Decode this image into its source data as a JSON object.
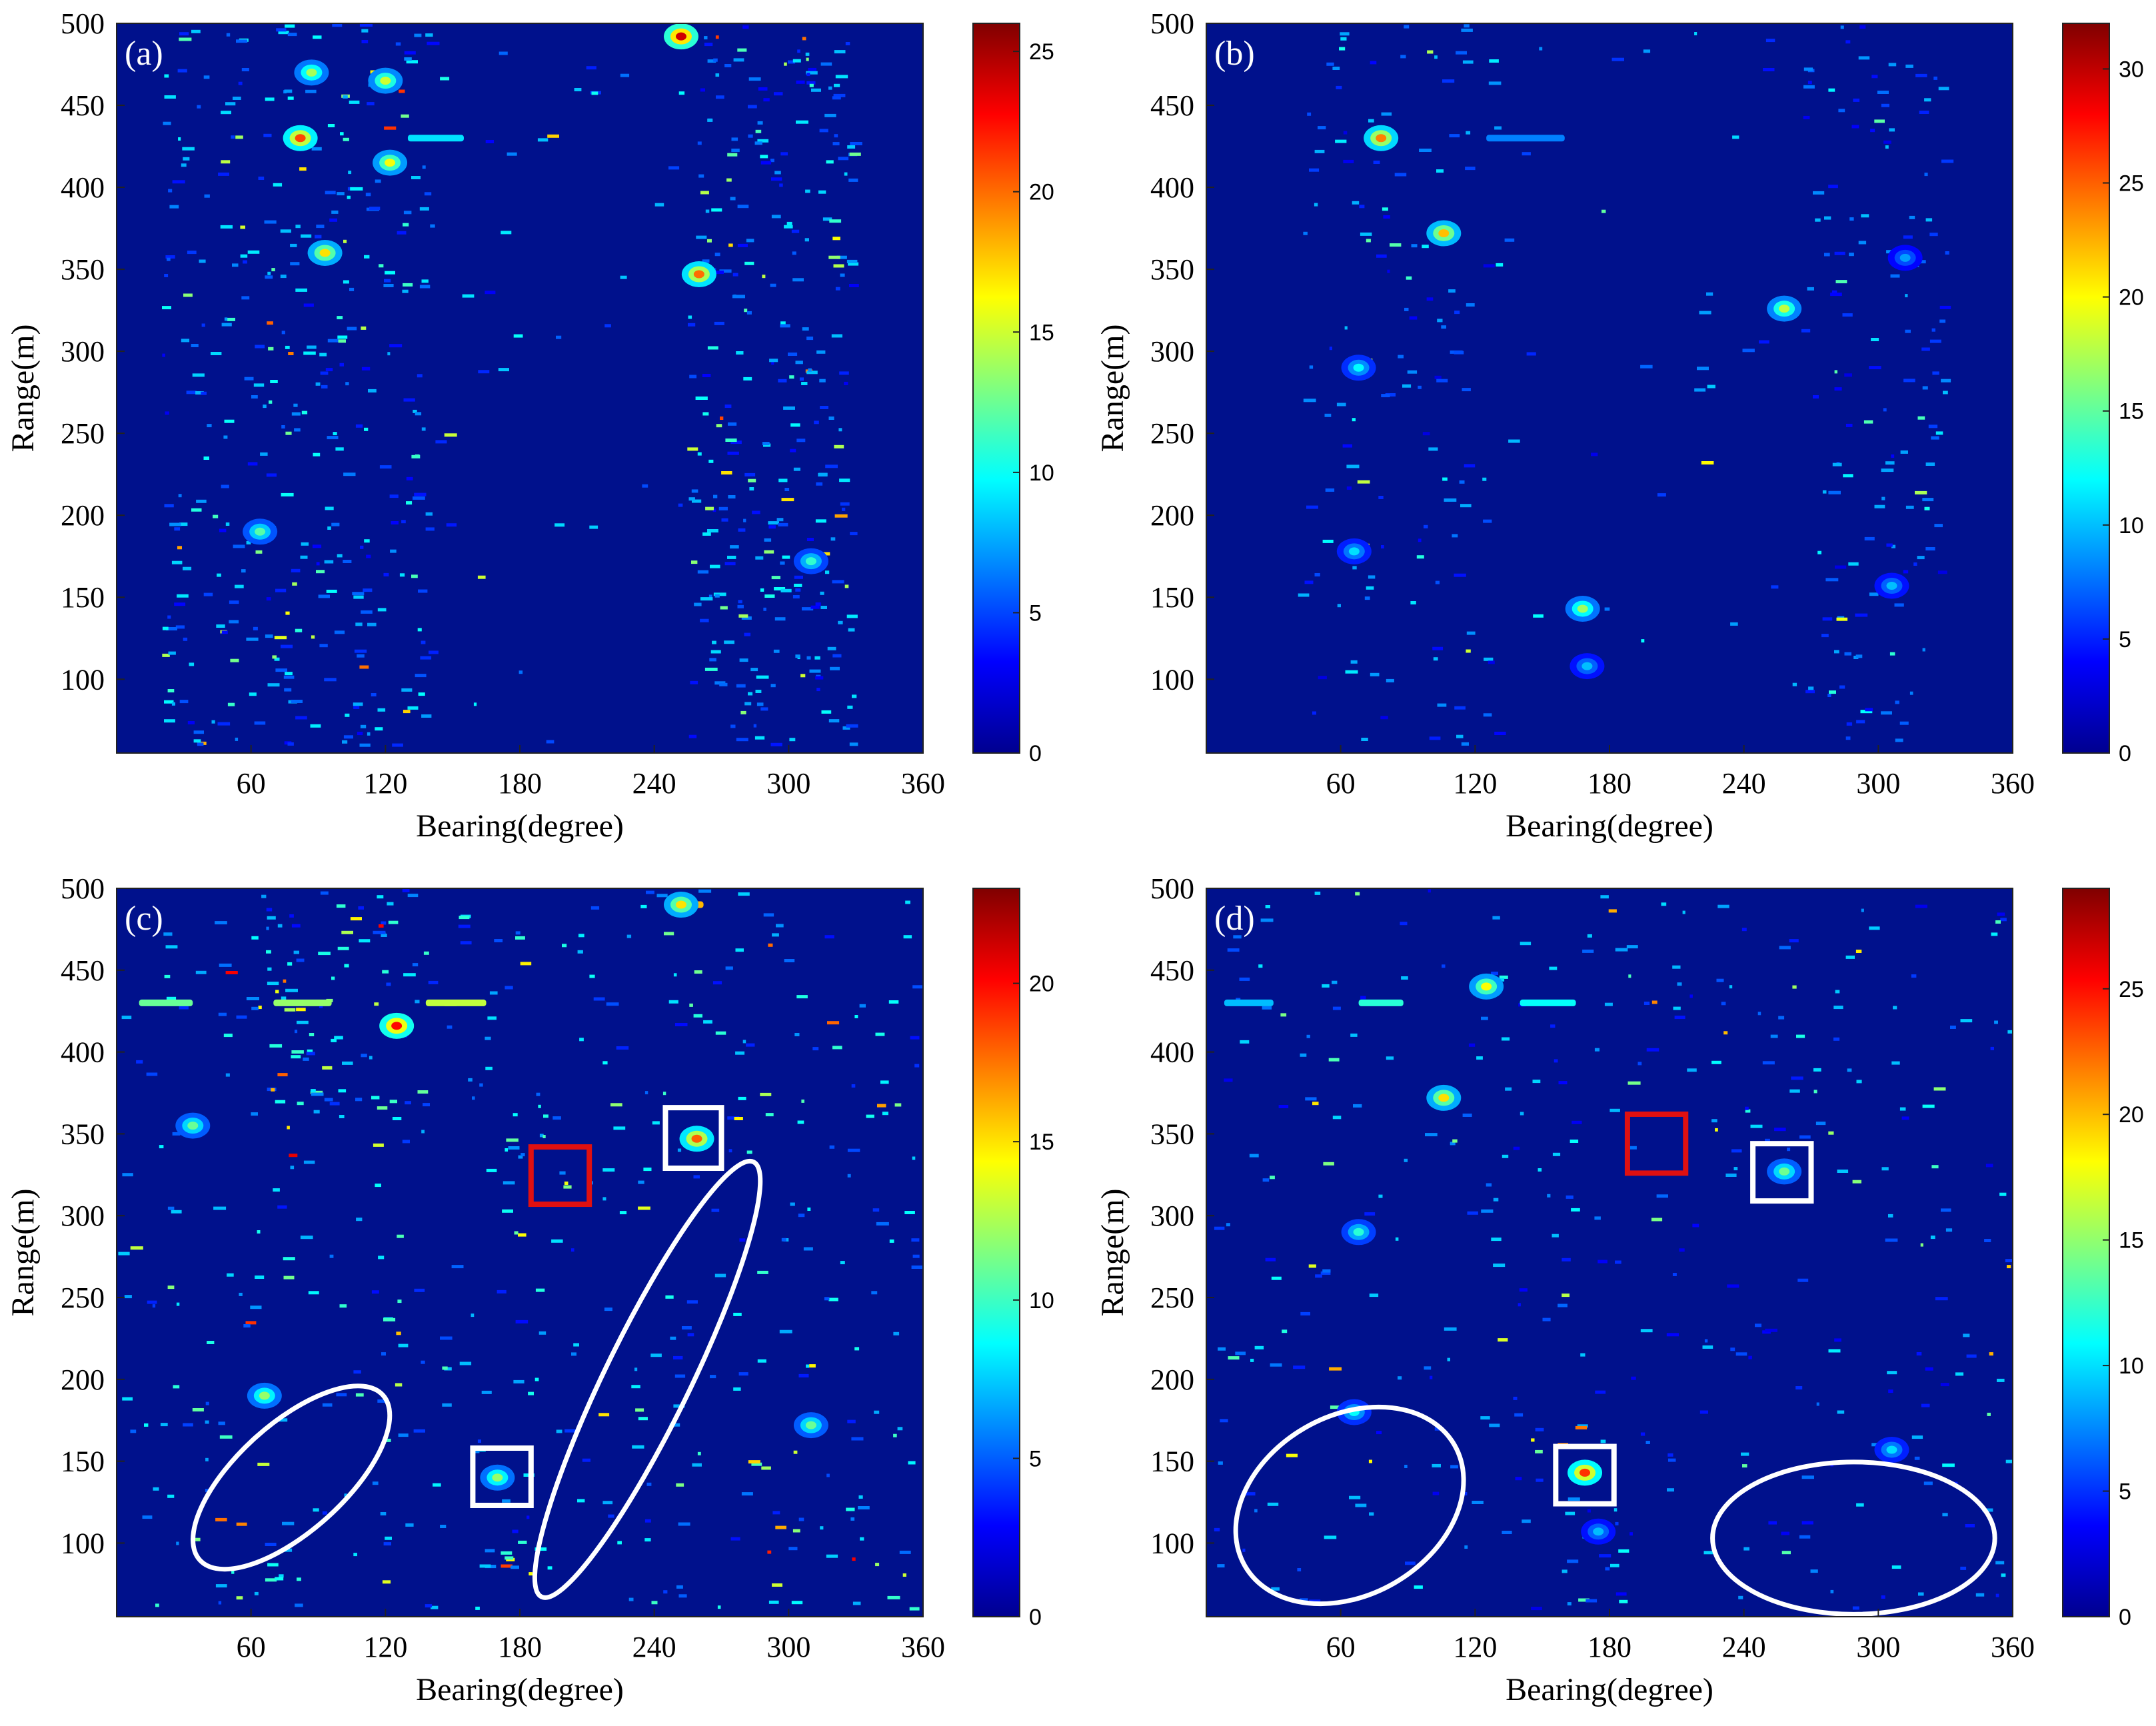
{
  "figure": {
    "background": "#ffffff",
    "field_color": "#00118c",
    "white_marker": "#ffffff",
    "red_marker": "#e01010"
  },
  "chart_data": [
    {
      "type": "heatmap",
      "panel_label": "(a)",
      "xlabel": "Bearing(degree)",
      "ylabel": "Range(m)",
      "xlim": [
        0,
        360
      ],
      "ylim": [
        55,
        500
      ],
      "xticks": [
        60,
        120,
        180,
        240,
        300,
        360
      ],
      "yticks": [
        100,
        150,
        200,
        250,
        300,
        350,
        400,
        450,
        500
      ],
      "colorbar": {
        "min": 0,
        "max": 26,
        "ticks": [
          0,
          5,
          10,
          15,
          20,
          25
        ]
      },
      "bands": [
        {
          "x0": 20,
          "x1": 140,
          "y0": 60,
          "y1": 500,
          "density": 0.55
        },
        {
          "x0": 255,
          "x1": 330,
          "y0": 60,
          "y1": 500,
          "density": 0.75
        },
        {
          "x0": 140,
          "x1": 255,
          "y0": 60,
          "y1": 500,
          "density": 0.06
        }
      ],
      "hotspots": [
        {
          "x": 252,
          "y": 492,
          "v": 24
        },
        {
          "x": 260,
          "y": 347,
          "v": 20
        },
        {
          "x": 82,
          "y": 430,
          "v": 21
        },
        {
          "x": 93,
          "y": 360,
          "v": 17
        },
        {
          "x": 122,
          "y": 415,
          "v": 16
        },
        {
          "x": 64,
          "y": 190,
          "v": 12
        },
        {
          "x": 310,
          "y": 172,
          "v": 11
        },
        {
          "x": 120,
          "y": 465,
          "v": 15
        },
        {
          "x": 87,
          "y": 470,
          "v": 14
        }
      ],
      "streaks": [
        {
          "x0": 130,
          "x1": 155,
          "y": 430,
          "v": 9
        }
      ],
      "ellipses": [],
      "boxes": []
    },
    {
      "type": "heatmap",
      "panel_label": "(b)",
      "xlabel": "Bearing(degree)",
      "ylabel": "Range(m)",
      "xlim": [
        0,
        360
      ],
      "ylim": [
        55,
        500
      ],
      "xticks": [
        60,
        120,
        180,
        240,
        300,
        360
      ],
      "yticks": [
        100,
        150,
        200,
        250,
        300,
        350,
        400,
        450,
        500
      ],
      "colorbar": {
        "min": 0,
        "max": 32,
        "ticks": [
          0,
          5,
          10,
          15,
          20,
          25,
          30
        ]
      },
      "bands": [
        {
          "x0": 40,
          "x1": 130,
          "y0": 60,
          "y1": 500,
          "density": 0.28
        },
        {
          "x0": 265,
          "x1": 330,
          "y0": 60,
          "y1": 500,
          "density": 0.4
        },
        {
          "x0": 130,
          "x1": 265,
          "y0": 60,
          "y1": 500,
          "density": 0.04
        }
      ],
      "hotspots": [
        {
          "x": 78,
          "y": 430,
          "v": 24
        },
        {
          "x": 106,
          "y": 372,
          "v": 22
        },
        {
          "x": 258,
          "y": 326,
          "v": 18
        },
        {
          "x": 168,
          "y": 143,
          "v": 17
        },
        {
          "x": 68,
          "y": 290,
          "v": 12
        },
        {
          "x": 66,
          "y": 178,
          "v": 11
        },
        {
          "x": 170,
          "y": 108,
          "v": 10
        },
        {
          "x": 312,
          "y": 357,
          "v": 9
        },
        {
          "x": 306,
          "y": 157,
          "v": 10
        }
      ],
      "streaks": [
        {
          "x0": 125,
          "x1": 160,
          "y": 430,
          "v": 8
        }
      ],
      "ellipses": [],
      "boxes": []
    },
    {
      "type": "heatmap",
      "panel_label": "(c)",
      "xlabel": "Bearing(degree)",
      "ylabel": "Range(m)",
      "xlim": [
        0,
        360
      ],
      "ylim": [
        55,
        500
      ],
      "xticks": [
        60,
        120,
        180,
        240,
        300,
        360
      ],
      "yticks": [
        100,
        150,
        200,
        250,
        300,
        350,
        400,
        450,
        500
      ],
      "colorbar": {
        "min": 0,
        "max": 23,
        "ticks": [
          0,
          5,
          10,
          15,
          20
        ]
      },
      "bands": [
        {
          "x0": 0,
          "x1": 360,
          "y0": 60,
          "y1": 500,
          "density": 0.22
        },
        {
          "x0": 60,
          "x1": 130,
          "y0": 360,
          "y1": 500,
          "density": 0.5
        },
        {
          "x0": 170,
          "x1": 185,
          "y0": 60,
          "y1": 130,
          "density": 0.7
        }
      ],
      "hotspots": [
        {
          "x": 259,
          "y": 347,
          "v": 18
        },
        {
          "x": 170,
          "y": 140,
          "v": 12
        },
        {
          "x": 34,
          "y": 355,
          "v": 11
        },
        {
          "x": 66,
          "y": 190,
          "v": 12
        },
        {
          "x": 310,
          "y": 172,
          "v": 11
        },
        {
          "x": 125,
          "y": 416,
          "v": 20
        },
        {
          "x": 252,
          "y": 490,
          "v": 15
        }
      ],
      "streaks": [
        {
          "x0": 10,
          "x1": 34,
          "y": 430,
          "v": 11
        },
        {
          "x0": 70,
          "x1": 96,
          "y": 430,
          "v": 12
        },
        {
          "x0": 138,
          "x1": 165,
          "y": 430,
          "v": 13
        },
        {
          "x0": 245,
          "x1": 262,
          "y": 490,
          "v": 16
        }
      ],
      "ellipses": [
        {
          "cx": 78,
          "cy": 140,
          "rx": 55,
          "ry": 24,
          "angle": 42,
          "color": "white"
        },
        {
          "cx": 237,
          "cy": 200,
          "rx": 108,
          "ry": 19,
          "angle": 64,
          "color": "white"
        }
      ],
      "boxes": [
        {
          "x0": 185,
          "x1": 211,
          "y0": 307,
          "y1": 342,
          "color": "red"
        },
        {
          "x0": 245,
          "x1": 270,
          "y0": 329,
          "y1": 366,
          "color": "white"
        },
        {
          "x0": 159,
          "x1": 185,
          "y0": 123,
          "y1": 158,
          "color": "white"
        }
      ]
    },
    {
      "type": "heatmap",
      "panel_label": "(d)",
      "xlabel": "Bearing(degree)",
      "ylabel": "Range(m)",
      "xlim": [
        0,
        360
      ],
      "ylim": [
        55,
        500
      ],
      "xticks": [
        60,
        120,
        180,
        240,
        300,
        360
      ],
      "yticks": [
        100,
        150,
        200,
        250,
        300,
        350,
        400,
        450,
        500
      ],
      "colorbar": {
        "min": 0,
        "max": 29,
        "ticks": [
          0,
          5,
          10,
          15,
          20,
          25
        ]
      },
      "bands": [
        {
          "x0": 0,
          "x1": 360,
          "y0": 60,
          "y1": 500,
          "density": 0.18
        },
        {
          "x0": 160,
          "x1": 185,
          "y0": 60,
          "y1": 130,
          "density": 0.55
        }
      ],
      "hotspots": [
        {
          "x": 169,
          "y": 143,
          "v": 24
        },
        {
          "x": 258,
          "y": 327,
          "v": 14
        },
        {
          "x": 68,
          "y": 290,
          "v": 12
        },
        {
          "x": 66,
          "y": 180,
          "v": 11
        },
        {
          "x": 106,
          "y": 372,
          "v": 19
        },
        {
          "x": 125,
          "y": 440,
          "v": 18
        },
        {
          "x": 306,
          "y": 157,
          "v": 10
        },
        {
          "x": 175,
          "y": 107,
          "v": 9
        }
      ],
      "streaks": [
        {
          "x0": 8,
          "x1": 30,
          "y": 430,
          "v": 9
        },
        {
          "x0": 68,
          "x1": 88,
          "y": 430,
          "v": 12
        },
        {
          "x0": 140,
          "x1": 165,
          "y": 430,
          "v": 11
        }
      ],
      "ellipses": [
        {
          "cx": 64,
          "cy": 123,
          "rx": 54,
          "ry": 40,
          "angle": 30,
          "color": "white"
        },
        {
          "cx": 289,
          "cy": 103,
          "rx": 63,
          "ry": 34,
          "angle": 0,
          "color": "white"
        }
      ],
      "boxes": [
        {
          "x0": 188,
          "x1": 214,
          "y0": 326,
          "y1": 362,
          "color": "red"
        },
        {
          "x0": 244,
          "x1": 270,
          "y0": 309,
          "y1": 344,
          "color": "white"
        },
        {
          "x0": 156,
          "x1": 182,
          "y0": 124,
          "y1": 159,
          "color": "white"
        }
      ]
    }
  ]
}
